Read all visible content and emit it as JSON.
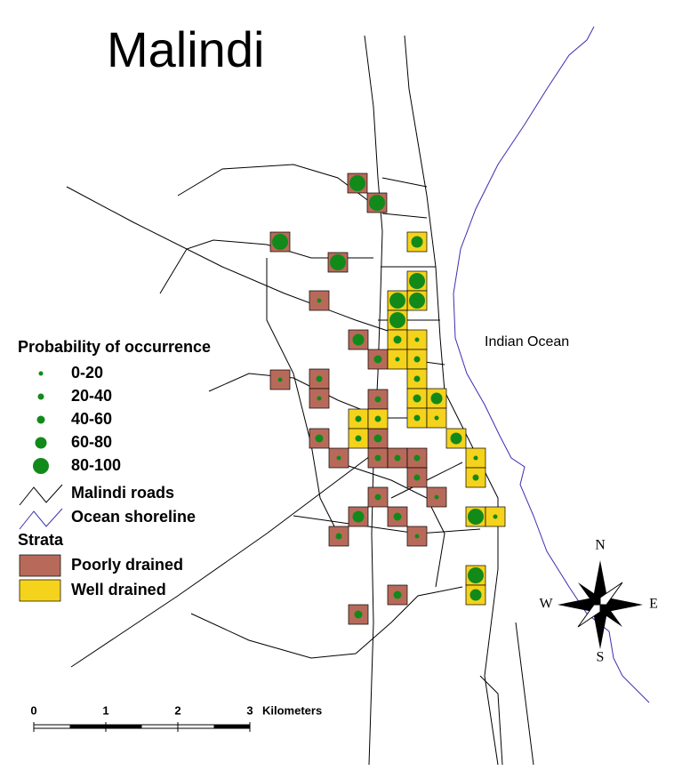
{
  "title": "Malindi",
  "ocean_label": "Indian Ocean",
  "legend": {
    "probability": {
      "title": "Probability of occurrence",
      "classes": [
        "0-20",
        "20-40",
        "40-60",
        "60-80",
        "80-100"
      ]
    },
    "roads": "Malindi roads",
    "shoreline": "Ocean shoreline",
    "strata": {
      "title": "Strata",
      "items": [
        "Poorly drained",
        "Well drained"
      ]
    }
  },
  "scale_bar": {
    "ticks": [
      0,
      1,
      2,
      3
    ],
    "unit": "Kilometers"
  },
  "compass": {
    "north": "N",
    "south": "S",
    "west": "W",
    "east": "E"
  }
}
